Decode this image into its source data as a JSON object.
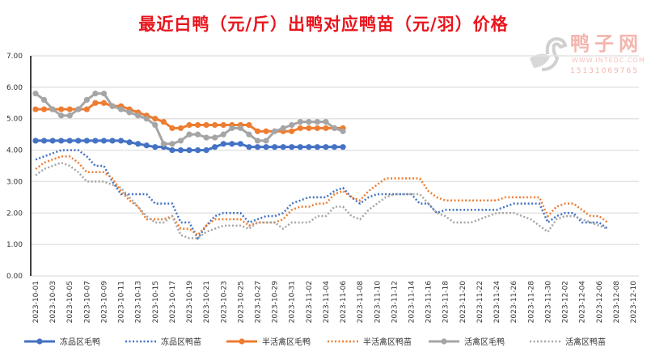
{
  "title": "最近白鸭（元/斤）出鸭对应鸭苗（元/羽）价格",
  "logo": {
    "name": "鸭子网",
    "url": "WWW.INTEDC.COM",
    "phone": "15131069765"
  },
  "chart_data": {
    "type": "line",
    "title": "最近白鸭（元/斤）出鸭对应鸭苗（元/羽）价格",
    "xlabel": "",
    "ylabel": "",
    "ylim": [
      0,
      7
    ],
    "y_ticks": [
      "0.00",
      "1.00",
      "2.00",
      "3.00",
      "4.00",
      "5.00",
      "6.00",
      "7.00"
    ],
    "x_start": "2023-10-01",
    "x_days": 71,
    "x_tick_labels": [
      "2023-10-01",
      "2023-10-03",
      "2023-10-05",
      "2023-10-07",
      "2023-10-09",
      "2023-10-11",
      "2023-10-13",
      "2023-10-15",
      "2023-10-17",
      "2023-10-19",
      "2023-10-21",
      "2023-10-23",
      "2023-10-25",
      "2023-10-27",
      "2023-10-29",
      "2023-10-31",
      "2023-11-02",
      "2023-11-04",
      "2023-11-06",
      "2023-11-08",
      "2023-11-10",
      "2023-11-12",
      "2023-11-14",
      "2023-11-16",
      "2023-11-18",
      "2023-11-20",
      "2023-11-22",
      "2023-11-24",
      "2023-11-26",
      "2023-11-28",
      "2023-11-30",
      "2023-12-02",
      "2023-12-04",
      "2023-12-06",
      "2023-12-08",
      "2023-12-10"
    ],
    "grid": true,
    "legend_position": "bottom",
    "series": [
      {
        "name": "冻品区毛鸭",
        "color": "#4472c4",
        "style": "solid",
        "values": [
          4.3,
          4.3,
          4.3,
          4.3,
          4.3,
          4.3,
          4.3,
          4.3,
          4.3,
          4.3,
          4.3,
          4.25,
          4.2,
          4.15,
          4.1,
          4.1,
          4.0,
          4.0,
          4.0,
          4.0,
          4.0,
          4.1,
          4.2,
          4.2,
          4.2,
          4.1,
          4.1,
          4.1,
          4.1,
          4.1,
          4.1,
          4.1,
          4.1,
          4.1,
          4.1,
          4.1,
          4.1
        ]
      },
      {
        "name": "冻品区鸭苗",
        "color": "#4472c4",
        "style": "dotted",
        "values": [
          3.7,
          3.8,
          3.9,
          4.0,
          4.0,
          4.0,
          3.8,
          3.5,
          3.5,
          3.0,
          2.6,
          2.6,
          2.6,
          2.6,
          2.3,
          2.3,
          2.3,
          1.7,
          1.7,
          1.2,
          1.6,
          1.9,
          2.0,
          2.0,
          2.0,
          1.7,
          1.8,
          1.9,
          1.9,
          2.0,
          2.3,
          2.4,
          2.5,
          2.5,
          2.5,
          2.7,
          2.8,
          2.5,
          2.3,
          2.5,
          2.6,
          2.6,
          2.6,
          2.6,
          2.6,
          2.3,
          2.3,
          2.0,
          2.1,
          2.1,
          2.1,
          2.1,
          2.1,
          2.1,
          2.1,
          2.2,
          2.3,
          2.3,
          2.3,
          2.3,
          1.7,
          1.9,
          2.0,
          2.0,
          1.7,
          1.7,
          1.7,
          1.5
        ]
      },
      {
        "name": "半活禽区毛鸭",
        "color": "#ed7d31",
        "style": "solid",
        "values": [
          5.3,
          5.3,
          5.3,
          5.3,
          5.3,
          5.3,
          5.3,
          5.5,
          5.5,
          5.4,
          5.4,
          5.3,
          5.2,
          5.1,
          5.0,
          4.9,
          4.7,
          4.7,
          4.8,
          4.8,
          4.8,
          4.8,
          4.8,
          4.8,
          4.8,
          4.8,
          4.6,
          4.6,
          4.6,
          4.6,
          4.6,
          4.7,
          4.7,
          4.7,
          4.7,
          4.7,
          4.7
        ]
      },
      {
        "name": "半活禽区鸭苗",
        "color": "#ed7d31",
        "style": "dotted",
        "values": [
          3.4,
          3.6,
          3.7,
          3.8,
          3.8,
          3.6,
          3.3,
          3.3,
          3.3,
          3.1,
          2.7,
          2.4,
          2.2,
          1.8,
          1.8,
          1.8,
          1.9,
          1.5,
          1.5,
          1.3,
          1.6,
          1.8,
          1.8,
          1.8,
          1.8,
          1.6,
          1.7,
          1.7,
          1.7,
          1.8,
          2.1,
          2.2,
          2.2,
          2.3,
          2.3,
          2.6,
          2.7,
          2.5,
          2.4,
          2.7,
          2.9,
          3.1,
          3.1,
          3.1,
          3.1,
          3.1,
          2.7,
          2.5,
          2.4,
          2.4,
          2.4,
          2.4,
          2.4,
          2.4,
          2.4,
          2.5,
          2.5,
          2.5,
          2.5,
          2.5,
          1.9,
          2.2,
          2.3,
          2.3,
          2.1,
          1.9,
          1.9,
          1.7
        ]
      },
      {
        "name": "活禽区毛鸭",
        "color": "#a5a5a5",
        "style": "solid",
        "values": [
          5.8,
          5.6,
          5.3,
          5.1,
          5.1,
          5.3,
          5.6,
          5.8,
          5.8,
          5.4,
          5.3,
          5.2,
          5.1,
          5.0,
          4.8,
          4.2,
          4.2,
          4.3,
          4.5,
          4.5,
          4.4,
          4.4,
          4.5,
          4.7,
          4.7,
          4.5,
          4.3,
          4.3,
          4.6,
          4.7,
          4.8,
          4.9,
          4.9,
          4.9,
          4.9,
          4.7,
          4.6
        ]
      },
      {
        "name": "活禽区鸭苗",
        "color": "#a5a5a5",
        "style": "dotted",
        "values": [
          3.2,
          3.4,
          3.5,
          3.6,
          3.5,
          3.3,
          3.0,
          3.0,
          3.0,
          2.9,
          2.8,
          2.5,
          2.2,
          1.9,
          1.7,
          1.7,
          1.9,
          1.3,
          1.2,
          1.2,
          1.4,
          1.5,
          1.6,
          1.6,
          1.6,
          1.5,
          1.7,
          1.7,
          1.7,
          1.5,
          1.7,
          1.7,
          1.7,
          1.9,
          1.9,
          2.2,
          2.2,
          1.9,
          1.8,
          2.1,
          2.3,
          2.5,
          2.6,
          2.6,
          2.6,
          2.6,
          2.3,
          2.0,
          1.9,
          1.7,
          1.7,
          1.7,
          1.8,
          1.9,
          2.0,
          2.0,
          2.0,
          1.9,
          1.8,
          1.6,
          1.4,
          1.8,
          1.9,
          1.9,
          1.8,
          1.7,
          1.6,
          1.5
        ]
      }
    ]
  }
}
